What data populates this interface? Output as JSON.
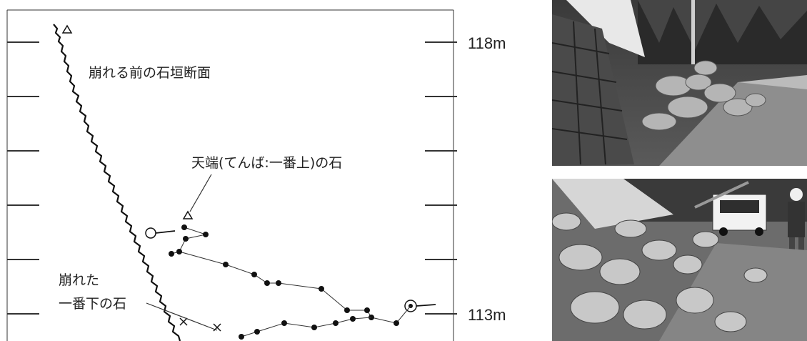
{
  "diagram": {
    "scale_labels": {
      "top": "118m",
      "bottom": "113m"
    },
    "annotations": {
      "original_section": "崩れる前の石垣断面",
      "top_stone": "天端(てんば:一番上)の石",
      "bottom_stone_line1": "崩れた",
      "bottom_stone_line2": "一番下の石"
    },
    "elevation_range_m": [
      113,
      118
    ]
  },
  "photos": [
    {
      "subject": "collapsed stone wall rubble beside road, construction vehicle in background"
    },
    {
      "subject": "collapsed stone wall rubble with truck and worker in hard hat"
    }
  ]
}
